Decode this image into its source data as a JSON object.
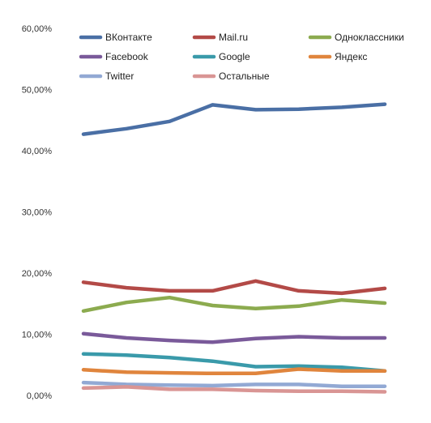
{
  "chart_data": {
    "type": "line",
    "title": "",
    "xlabel": "",
    "ylabel": "",
    "ylim": [
      0,
      60
    ],
    "y_ticks": [
      "0,00%",
      "10,00%",
      "20,00%",
      "30,00%",
      "40,00%",
      "50,00%",
      "60,00%"
    ],
    "y_tick_values": [
      0,
      10,
      20,
      30,
      40,
      50,
      60
    ],
    "x": [
      1,
      2,
      3,
      4,
      5,
      6,
      7,
      8
    ],
    "grid": false,
    "legend_position": "top",
    "series": [
      {
        "name": "ВКонтакте",
        "color": "#4a6fa5",
        "values": [
          42.7,
          43.6,
          44.8,
          47.5,
          46.7,
          46.8,
          47.1,
          47.6
        ]
      },
      {
        "name": "Mail.ru",
        "color": "#b34a47",
        "values": [
          18.5,
          17.6,
          17.1,
          17.1,
          18.7,
          17.1,
          16.7,
          17.5
        ]
      },
      {
        "name": "Одноклассники",
        "color": "#8cab4f",
        "values": [
          13.8,
          15.2,
          16.0,
          14.7,
          14.2,
          14.6,
          15.6,
          15.1
        ]
      },
      {
        "name": "Facebook",
        "color": "#7a5a9a",
        "values": [
          10.1,
          9.4,
          9.0,
          8.7,
          9.3,
          9.6,
          9.4,
          9.4
        ]
      },
      {
        "name": "Google",
        "color": "#3a9aaa",
        "values": [
          6.8,
          6.6,
          6.2,
          5.6,
          4.7,
          4.8,
          4.6,
          4.0
        ]
      },
      {
        "name": "Яндекс",
        "color": "#e0853d",
        "values": [
          4.2,
          3.8,
          3.7,
          3.6,
          3.6,
          4.3,
          4.0,
          4.0
        ]
      },
      {
        "name": "Twitter",
        "color": "#92a9d4",
        "values": [
          2.1,
          1.8,
          1.7,
          1.6,
          1.8,
          1.8,
          1.5,
          1.5
        ]
      },
      {
        "name": "Остальные",
        "color": "#d99594",
        "values": [
          1.2,
          1.4,
          1.0,
          1.0,
          0.8,
          0.7,
          0.7,
          0.6
        ]
      }
    ]
  }
}
